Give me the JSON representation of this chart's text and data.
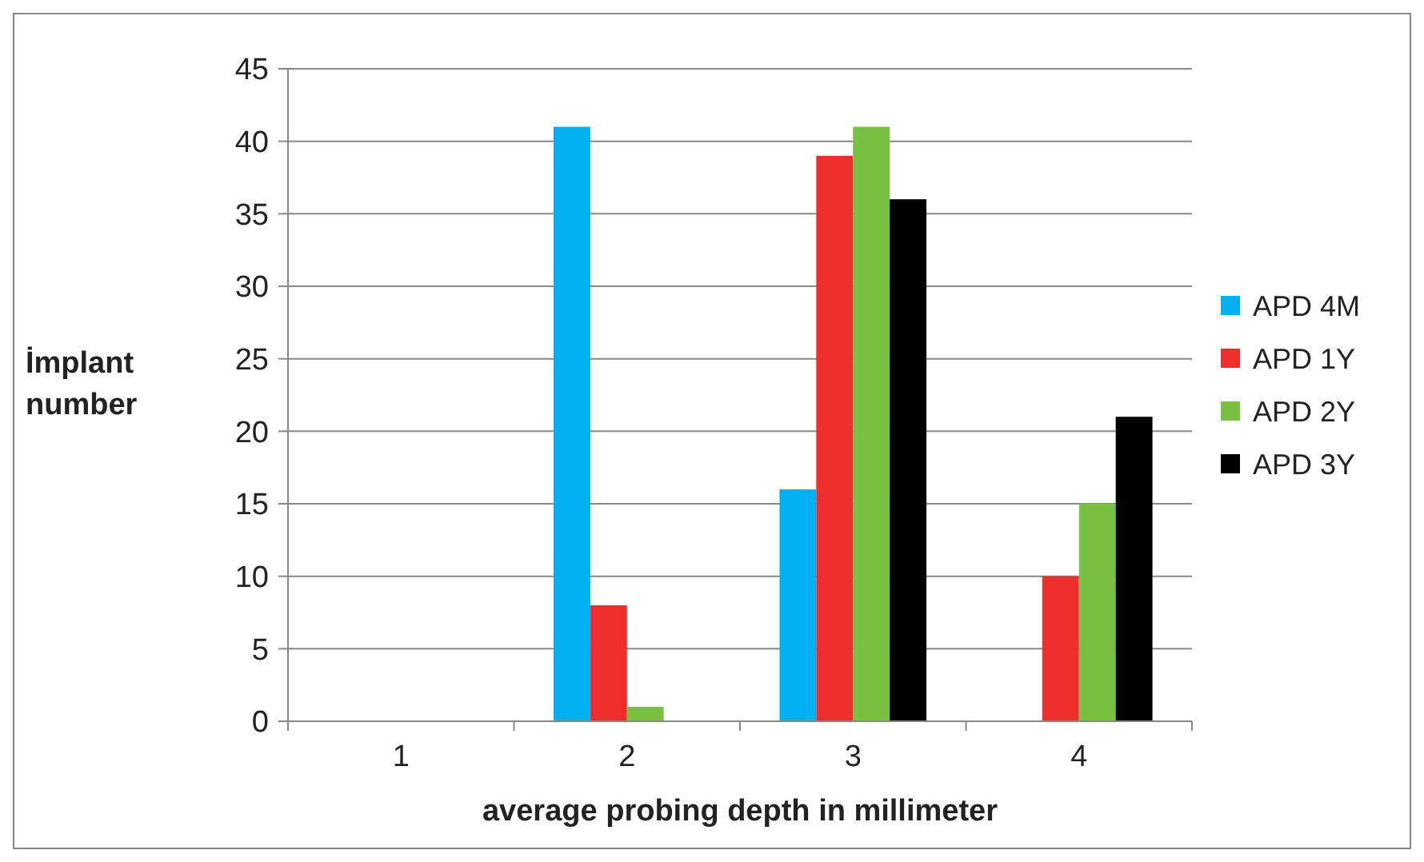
{
  "chart_data": {
    "type": "bar",
    "xlabel": "average probing depth in millimeter",
    "ylabel": "İmplant number",
    "categories": [
      "1",
      "2",
      "3",
      "4"
    ],
    "series": [
      {
        "name": "APD 4M",
        "color": "#00b0f0",
        "values": [
          0,
          41,
          16,
          0
        ]
      },
      {
        "name": "APD 1Y",
        "color": "#ee2d2d",
        "values": [
          0,
          8,
          39,
          10
        ]
      },
      {
        "name": "APD 2Y",
        "color": "#7ac143",
        "values": [
          0,
          1,
          41,
          15
        ]
      },
      {
        "name": "APD 3Y",
        "color": "#000000",
        "values": [
          0,
          0,
          36,
          21
        ]
      }
    ],
    "ylim": [
      0,
      45
    ],
    "yticks": [
      0,
      5,
      10,
      15,
      20,
      25,
      30,
      35,
      40,
      45
    ],
    "grid": "y",
    "legend": "right"
  }
}
